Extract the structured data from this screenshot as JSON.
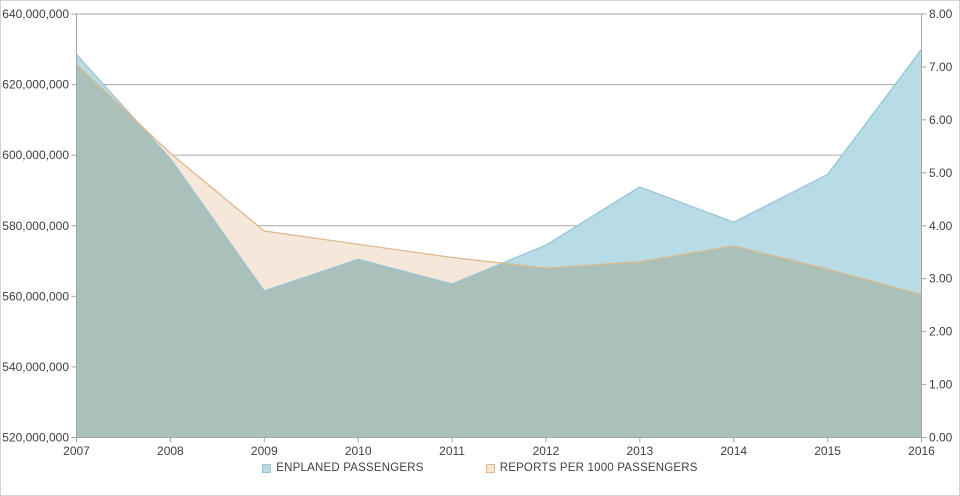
{
  "chart_data": {
    "type": "area",
    "title": "",
    "categories": [
      "2007",
      "2008",
      "2009",
      "2010",
      "2011",
      "2012",
      "2013",
      "2014",
      "2015",
      "2016"
    ],
    "series": [
      {
        "name": "ENPLANED PASSENGERS",
        "axis": "left",
        "fill": "#B8DCE6",
        "line": "#9BC5D2",
        "values": [
          628500000,
          599000000,
          561500000,
          570500000,
          563500000,
          574500000,
          591000000,
          581000000,
          594500000,
          630000000
        ]
      },
      {
        "name": "REPORTS PER 1000 PASSENGERS",
        "axis": "right",
        "fill": "#F5E8DB",
        "line": "#DFB98E",
        "values": [
          7.05,
          5.37,
          3.9,
          3.65,
          3.4,
          3.2,
          3.32,
          3.62,
          3.18,
          2.7
        ]
      }
    ],
    "overlap_fill": "#A9C0BB",
    "left_axis": {
      "min": 520000000,
      "max": 640000000,
      "step": 20000000,
      "tick_labels": [
        "640,000,000",
        "620,000,000",
        "600,000,000",
        "580,000,000",
        "560,000,000",
        "540,000,000",
        "520,000,000"
      ]
    },
    "right_axis": {
      "min": 0,
      "max": 8,
      "step": 1,
      "tick_labels": [
        "8.00",
        "7.00",
        "6.00",
        "5.00",
        "4.00",
        "3.00",
        "2.00",
        "1.00",
        "0.00"
      ]
    },
    "grid": true,
    "legend_position": "bottom",
    "colors": {
      "grid": "#A6A6A6",
      "axis": "#A6A6A6",
      "text": "#404040",
      "border": "#D3D3D3",
      "background": "#FFFFFF"
    }
  }
}
